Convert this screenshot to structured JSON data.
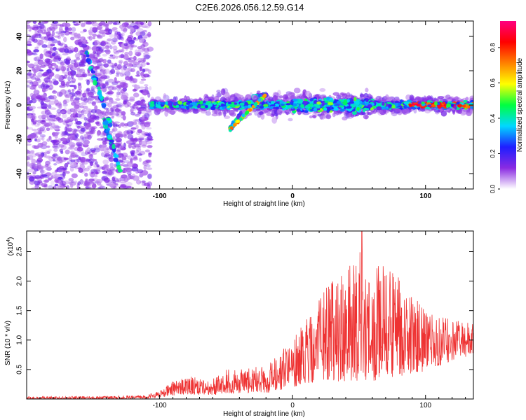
{
  "title": "C2E6.2026.056.12.59.G14",
  "chart_data": [
    {
      "type": "heatmap",
      "xlabel": "Height of straight line (km)",
      "ylabel": "Frequency (Hz)",
      "xlim": [
        -200,
        136
      ],
      "ylim": [
        -49,
        49
      ],
      "x_ticks": [
        -100,
        0,
        100
      ],
      "x_tick_labels": [
        "-100",
        "0",
        "100"
      ],
      "y_ticks": [
        -40,
        -20,
        0,
        20,
        40
      ],
      "y_tick_labels": [
        "-40",
        "-20",
        "0",
        "20",
        "40"
      ],
      "colorbar": {
        "label": "Normalized spectral amplitude",
        "range": [
          0.0,
          0.95
        ],
        "ticks": [
          0.0,
          0.2,
          0.4,
          0.6,
          0.8
        ],
        "tick_labels": [
          "0.0",
          "0.2",
          "0.4",
          "0.6",
          "0.8"
        ]
      },
      "colorscale": [
        "#ffffff",
        "#8a2be2",
        "#1e1eff",
        "#00d8ff",
        "#00ff40",
        "#ffff00",
        "#ff8000",
        "#ff0000",
        "#ff0080"
      ],
      "features": [
        {
          "name": "diffuse noise region",
          "x_range": [
            -200,
            -107
          ],
          "freq_range": [
            -49,
            49
          ]
        },
        {
          "name": "main signal band",
          "x_range": [
            -107,
            136
          ],
          "center_freq_hz": 0
        },
        {
          "name": "slanted feature A",
          "points": [
            [
              -157,
              35
            ],
            [
              -137,
              -12
            ]
          ]
        },
        {
          "name": "slanted feature B",
          "points": [
            [
              -142,
              -8
            ],
            [
              -130,
              -38
            ]
          ]
        },
        {
          "name": "rising feature",
          "points": [
            [
              -47,
              -14
            ],
            [
              -37,
              -4
            ],
            [
              -30,
              4
            ],
            [
              -20,
              6
            ]
          ]
        }
      ]
    },
    {
      "type": "line",
      "xlabel": "Height of straight line (km)",
      "ylabel": "SNR (10 * v/v)",
      "multiplier": "(x10",
      "multiplier_exp": "4",
      "multiplier_close": ")",
      "xlim": [
        -200,
        136
      ],
      "ylim": [
        0,
        2.85
      ],
      "x_ticks": [
        -100,
        0,
        100
      ],
      "x_tick_labels": [
        "-100",
        "0",
        "100"
      ],
      "y_ticks": [
        0.5,
        1.0,
        1.5,
        2.0,
        2.5
      ],
      "y_tick_labels": [
        "0.5",
        "1.0",
        "1.5",
        "2.0",
        "2.5"
      ],
      "line_color": "#ee3333",
      "envelope_x": [
        -200,
        -150,
        -110,
        -100,
        -90,
        -80,
        -70,
        -60,
        -50,
        -40,
        -30,
        -20,
        -10,
        0,
        10,
        20,
        30,
        40,
        50,
        60,
        70,
        80,
        90,
        100,
        110,
        120,
        136
      ],
      "envelope_upper": [
        0.04,
        0.05,
        0.06,
        0.15,
        0.3,
        0.4,
        0.35,
        0.35,
        0.5,
        0.5,
        0.55,
        0.55,
        0.8,
        1.0,
        1.35,
        1.75,
        2.0,
        2.3,
        2.5,
        2.4,
        2.3,
        2.1,
        1.8,
        1.6,
        1.4,
        1.4,
        1.3
      ],
      "envelope_lower": [
        0.0,
        0.0,
        0.0,
        0.03,
        0.06,
        0.08,
        0.07,
        0.07,
        0.1,
        0.1,
        0.1,
        0.1,
        0.15,
        0.2,
        0.25,
        0.3,
        0.3,
        0.3,
        0.3,
        0.3,
        0.35,
        0.35,
        0.4,
        0.45,
        0.55,
        0.65,
        0.75
      ],
      "peak": {
        "x": 52,
        "y": 2.85
      }
    }
  ]
}
